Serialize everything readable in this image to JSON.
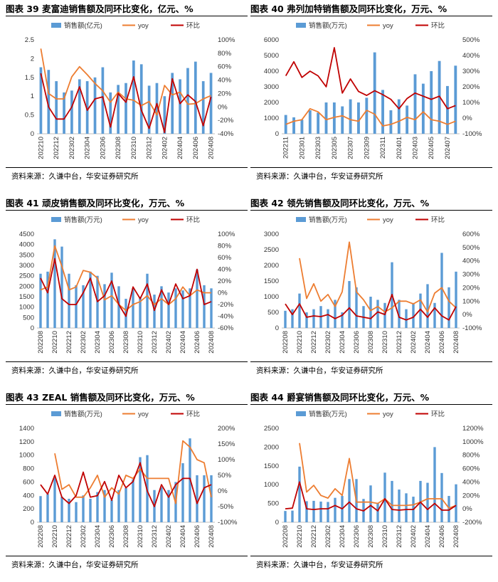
{
  "panels": [
    {
      "title": "图表 39 麦富迪销售额及同环比变化，亿元、%",
      "source": "资料来源：久谦中台，华安证券研究所",
      "chart_data": {
        "type": "bar-line-combo",
        "legend": [
          "销售额(亿元)",
          "yoy",
          "环比"
        ],
        "categories": [
          "202210",
          "202211",
          "202212",
          "202301",
          "202302",
          "202303",
          "202304",
          "202305",
          "202306",
          "202307",
          "202308",
          "202309",
          "202310",
          "202311",
          "202312",
          "202401",
          "202402",
          "202403",
          "202404",
          "202405",
          "202406",
          "202407",
          "202408"
        ],
        "x_tick_labels": [
          "202210",
          "202212",
          "202302",
          "202304",
          "202306",
          "202308",
          "202310",
          "202312",
          "202402",
          "202404",
          "202406",
          "202408"
        ],
        "sales": [
          1.77,
          1.7,
          1.4,
          1.1,
          1.15,
          1.45,
          1.4,
          1.5,
          1.77,
          1.1,
          1.3,
          1.35,
          1.95,
          1.85,
          1.28,
          1.35,
          1.0,
          1.62,
          1.45,
          1.75,
          1.92,
          1.4,
          1.62
        ],
        "yoy": [
          87,
          20,
          12,
          12,
          45,
          60,
          48,
          35,
          24,
          7,
          22,
          12,
          10,
          2,
          8,
          -12,
          32,
          18,
          22,
          4,
          5,
          12,
          17
        ],
        "mom": [
          50,
          0,
          -18,
          -18,
          0,
          30,
          -5,
          12,
          15,
          -30,
          20,
          7,
          45,
          -5,
          -32,
          5,
          -38,
          42,
          5,
          18,
          8,
          -28,
          15
        ],
        "left_axis": {
          "min": 0,
          "max": 2.5,
          "ticks": [
            "0",
            "0.5",
            "1",
            "1.5",
            "2",
            "2.5"
          ]
        },
        "right_axis": {
          "min": -40,
          "max": 100,
          "ticks": [
            "-40%",
            "-20%",
            "0%",
            "20%",
            "40%",
            "60%",
            "80%",
            "100%"
          ]
        }
      }
    },
    {
      "title": "图表 40 弗列加特销售额及同环比变化，万元、%",
      "source": "资料来源：久谦中台，华安证券研究所",
      "chart_data": {
        "type": "bar-line-combo",
        "legend": [
          "销售额(万元)",
          "yoy",
          "环比"
        ],
        "categories": [
          "202211",
          "202212",
          "202301",
          "202302",
          "202303",
          "202304",
          "202305",
          "202306",
          "202307",
          "202308",
          "202309",
          "202310",
          "202311",
          "202312",
          "202401",
          "202402",
          "202403",
          "202404",
          "202405",
          "202406",
          "202407",
          "202408"
        ],
        "x_tick_labels": [
          "202211",
          "202301",
          "202303",
          "202305",
          "202307",
          "202309",
          "202311",
          "202401",
          "202403",
          "202405",
          "202407"
        ],
        "sales": [
          1200,
          1050,
          900,
          1500,
          1350,
          2000,
          2000,
          1750,
          2200,
          2000,
          2300,
          5200,
          2800,
          1500,
          2200,
          1800,
          3800,
          3200,
          4000,
          4650,
          3050,
          4350
        ],
        "yoy": [
          -40,
          -20,
          -10,
          60,
          40,
          -10,
          5,
          15,
          -10,
          -20,
          50,
          25,
          -50,
          -40,
          -20,
          5,
          -10,
          40,
          -10,
          -20,
          -40,
          -20
        ],
        "mom": [
          270,
          360,
          260,
          300,
          270,
          200,
          450,
          160,
          250,
          170,
          145,
          175,
          150,
          120,
          60,
          125,
          160,
          140,
          120,
          140,
          60,
          80
        ],
        "left_axis": {
          "min": 0,
          "max": 6000,
          "ticks": [
            "0",
            "1000",
            "2000",
            "3000",
            "4000",
            "5000",
            "6000"
          ]
        },
        "right_axis": {
          "min": -100,
          "max": 500,
          "ticks": [
            "-100%",
            "0%",
            "100%",
            "200%",
            "300%",
            "400%",
            "500%"
          ]
        }
      }
    },
    {
      "title": "图表 41 顽皮销售额及同环比变化，万元、%",
      "source": "资料来源：久谦中台，华安证券研究所",
      "chart_data": {
        "type": "bar-line-combo",
        "legend": [
          "销售额(万元)",
          "yoy",
          "环比"
        ],
        "categories": [
          "202208",
          "202209",
          "202210",
          "202211",
          "202212",
          "202301",
          "202302",
          "202303",
          "202304",
          "202305",
          "202306",
          "202307",
          "202308",
          "202309",
          "202310",
          "202311",
          "202312",
          "202401",
          "202402",
          "202403",
          "202404",
          "202405",
          "202406",
          "202407",
          "202408"
        ],
        "x_tick_labels": [
          "202208",
          "202210",
          "202212",
          "202302",
          "202304",
          "202306",
          "202308",
          "202310",
          "202312",
          "202402",
          "202404",
          "202406",
          "202408"
        ],
        "sales": [
          2600,
          2700,
          4250,
          3900,
          2600,
          2050,
          2050,
          2700,
          2500,
          2100,
          2650,
          2000,
          1400,
          1900,
          1500,
          2600,
          1600,
          2000,
          1700,
          1900,
          1800,
          1900,
          2800,
          2050,
          1900
        ],
        "yoy": [
          5,
          10,
          80,
          45,
          5,
          10,
          38,
          35,
          25,
          -12,
          -5,
          -20,
          -30,
          -20,
          -15,
          -5,
          -20,
          -10,
          -20,
          -10,
          10,
          -5,
          5,
          0,
          0
        ],
        "mom": [
          25,
          0,
          58,
          -10,
          -20,
          -20,
          0,
          25,
          -15,
          -5,
          20,
          -20,
          -40,
          10,
          -10,
          15,
          -30,
          5,
          -20,
          15,
          -10,
          -5,
          40,
          -20,
          -15
        ],
        "left_axis": {
          "min": 0,
          "max": 4500,
          "ticks": [
            "0",
            "500",
            "1000",
            "1500",
            "2000",
            "2500",
            "3000",
            "3500",
            "4000",
            "4500"
          ]
        },
        "right_axis": {
          "min": -60,
          "max": 100,
          "ticks": [
            "-60%",
            "-40%",
            "-20%",
            "0%",
            "20%",
            "40%",
            "60%",
            "80%",
            "100%"
          ]
        }
      }
    },
    {
      "title": "图表 42 领先销售额及同环比变化，万元、%",
      "source": "资料来源：久谦中台，华安证券研究所",
      "chart_data": {
        "type": "bar-line-combo",
        "legend": [
          "销售额(万元)",
          "yoy",
          "环比"
        ],
        "categories": [
          "202208",
          "202209",
          "202210",
          "202211",
          "202212",
          "202301",
          "202302",
          "202303",
          "202304",
          "202305",
          "202306",
          "202307",
          "202308",
          "202309",
          "202310",
          "202311",
          "202312",
          "202401",
          "202402",
          "202403",
          "202404",
          "202405",
          "202406",
          "202407",
          "202408"
        ],
        "x_tick_labels": [
          "202208",
          "202210",
          "202212",
          "202302",
          "202304",
          "202306",
          "202308",
          "202310",
          "202312",
          "202402",
          "202404",
          "202406",
          "202408"
        ],
        "sales": [
          550,
          600,
          1100,
          500,
          600,
          700,
          600,
          900,
          500,
          1500,
          1300,
          700,
          1000,
          900,
          800,
          2100,
          900,
          600,
          800,
          1100,
          1400,
          800,
          2400,
          1300,
          1800
        ],
        "yoy": [
          null,
          null,
          420,
          120,
          230,
          100,
          150,
          60,
          170,
          540,
          170,
          110,
          30,
          60,
          20,
          50,
          100,
          100,
          80,
          110,
          20,
          160,
          200,
          100,
          50
        ],
        "mom": [
          80,
          0,
          80,
          -20,
          -10,
          -15,
          0,
          -30,
          -5,
          50,
          -10,
          -20,
          -30,
          20,
          0,
          150,
          -20,
          -40,
          -20,
          40,
          -20,
          50,
          -10,
          -40,
          60
        ],
        "left_axis": {
          "min": 0,
          "max": 3000,
          "ticks": [
            "0",
            "500",
            "1000",
            "1500",
            "2000",
            "2500",
            "3000"
          ]
        },
        "right_axis": {
          "min": -100,
          "max": 600,
          "ticks": [
            "-100%",
            "0%",
            "100%",
            "200%",
            "300%",
            "400%",
            "500%",
            "600%"
          ]
        }
      }
    },
    {
      "title": "图表 43 ZEAL 销售额及同环比变化，万元、%",
      "source": "资料来源：久谦中台，华安证券研究所",
      "chart_data": {
        "type": "bar-line-combo",
        "legend": [
          "销售额(万元)",
          "yoy",
          "环比"
        ],
        "categories": [
          "202208",
          "202209",
          "202210",
          "202211",
          "202212",
          "202301",
          "202302",
          "202303",
          "202304",
          "202305",
          "202306",
          "202307",
          "202308",
          "202309",
          "202310",
          "202311",
          "202312",
          "202401",
          "202402",
          "202403",
          "202404",
          "202405",
          "202406",
          "202407",
          "202408"
        ],
        "x_tick_labels": [
          "202208",
          "202210",
          "202212",
          "202302",
          "202304",
          "202306",
          "202308",
          "202310",
          "202312",
          "202402",
          "202404",
          "202406",
          "202408"
        ],
        "sales": [
          390,
          420,
          660,
          380,
          350,
          300,
          400,
          350,
          450,
          480,
          330,
          480,
          510,
          640,
          970,
          1000,
          480,
          520,
          480,
          600,
          880,
          1250,
          700,
          700,
          700
        ],
        "yoy": [
          null,
          null,
          120,
          5,
          20,
          -20,
          -20,
          10,
          50,
          -20,
          10,
          -10,
          50,
          40,
          70,
          40,
          40,
          40,
          40,
          -40,
          160,
          140,
          100,
          90,
          -20
        ],
        "mom": [
          20,
          -10,
          50,
          -20,
          -40,
          -15,
          60,
          -20,
          -15,
          30,
          -30,
          50,
          10,
          30,
          90,
          0,
          -50,
          20,
          -20,
          20,
          40,
          40,
          -40,
          10,
          20
        ],
        "left_axis": {
          "min": 0,
          "max": 1400,
          "ticks": [
            "0",
            "200",
            "400",
            "600",
            "800",
            "1000",
            "1200",
            "1400"
          ]
        },
        "right_axis": {
          "min": -100,
          "max": 200,
          "ticks": [
            "-100%",
            "-50%",
            "0%",
            "50%",
            "100%",
            "150%",
            "200%"
          ]
        }
      }
    },
    {
      "title": "图表 44 爵宴销售额及同环比变化，万元、%",
      "source": "资料来源：久谦中台，华安证券研究所",
      "chart_data": {
        "type": "bar-line-combo",
        "legend": [
          "销售额(万元)",
          "yoy",
          "环比"
        ],
        "categories": [
          "202208",
          "202209",
          "202210",
          "202211",
          "202212",
          "202301",
          "202302",
          "202303",
          "202304",
          "202305",
          "202306",
          "202307",
          "202308",
          "202309",
          "202310",
          "202311",
          "202312",
          "202401",
          "202402",
          "202403",
          "202404",
          "202405",
          "202406",
          "202407",
          "202408"
        ],
        "x_tick_labels": [
          "202208",
          "202210",
          "202212",
          "202302",
          "202304",
          "202306",
          "202308",
          "202310",
          "202312",
          "202402",
          "202404",
          "202406",
          "202408"
        ],
        "sales": [
          300,
          310,
          1480,
          560,
          570,
          550,
          540,
          650,
          700,
          1150,
          1150,
          620,
          980,
          520,
          1320,
          1100,
          870,
          770,
          680,
          1100,
          1050,
          2000,
          1310,
          700,
          1010
        ],
        "yoy": [
          null,
          null,
          980,
          250,
          350,
          200,
          160,
          300,
          200,
          750,
          100,
          100,
          100,
          80,
          150,
          50,
          50,
          50,
          60,
          100,
          150,
          150,
          150,
          10,
          50
        ],
        "mom": [
          0,
          10,
          400,
          0,
          -10,
          0,
          0,
          50,
          0,
          100,
          0,
          -30,
          50,
          -30,
          150,
          -10,
          -20,
          -10,
          -10,
          100,
          -10,
          80,
          -20,
          -20,
          50
        ],
        "left_axis": {
          "min": 0,
          "max": 2500,
          "ticks": [
            "0",
            "500",
            "1000",
            "1500",
            "2000",
            "2500"
          ]
        },
        "right_axis": {
          "min": -200,
          "max": 1200,
          "ticks": [
            "-200%",
            "0%",
            "200%",
            "400%",
            "600%",
            "800%",
            "1000%",
            "1200%"
          ]
        }
      }
    }
  ],
  "colors": {
    "bar": "#5b9bd5",
    "yoy": "#ed7d31",
    "mom": "#c00000",
    "axis": "#bfbfbf"
  }
}
